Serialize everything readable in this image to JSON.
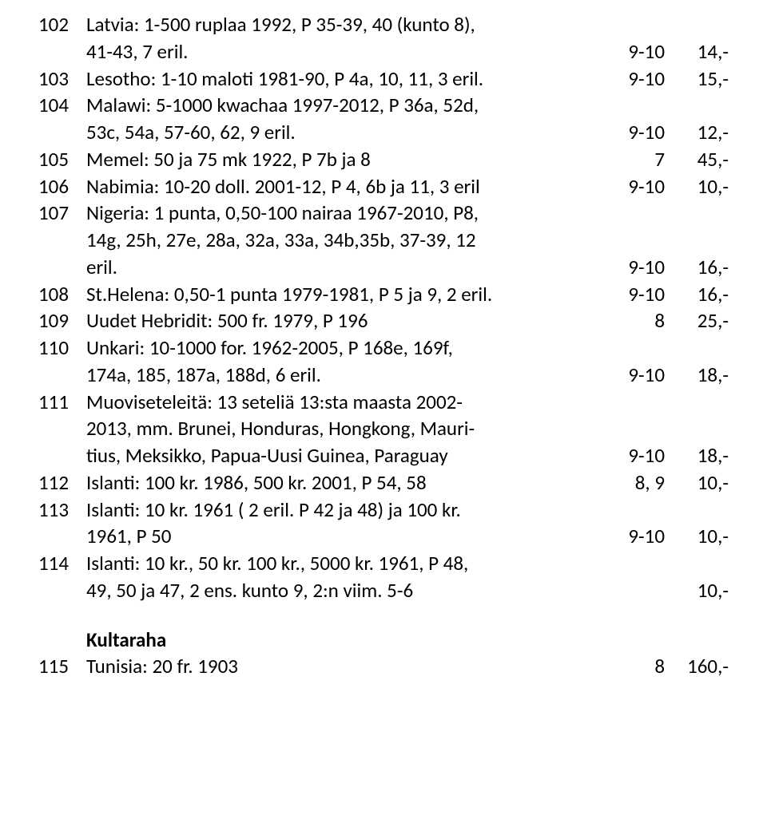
{
  "rows": [
    {
      "num": "102",
      "lines": [
        "Latvia: 1-500 ruplaa 1992, P 35-39, 40 (kunto 8),",
        "41-43, 7 eril."
      ],
      "c3": "9-10",
      "c4": "14,-"
    },
    {
      "num": "103",
      "lines": [
        "Lesotho: 1-10 maloti 1981-90, P 4a, 10, 11, 3 eril."
      ],
      "c3": "9-10",
      "c4": "15,-"
    },
    {
      "num": "104",
      "lines": [
        "Malawi: 5-1000 kwachaa 1997-2012, P 36a, 52d,",
        "53c, 54a, 57-60, 62, 9 eril."
      ],
      "c3": "9-10",
      "c4": "12,-"
    },
    {
      "num": "105",
      "lines": [
        "Memel: 50 ja 75 mk 1922, P 7b ja 8"
      ],
      "c3": "7",
      "c4": "45,-"
    },
    {
      "num": "106",
      "lines": [
        "Nabimia: 10-20 doll. 2001-12, P 4, 6b ja 11, 3 eril"
      ],
      "c3": "9-10",
      "c4": "10,-"
    },
    {
      "num": "107",
      "lines": [
        "Nigeria: 1 punta, 0,50-100 nairaa 1967-2010, P8,",
        "14g, 25h, 27e, 28a, 32a, 33a, 34b,35b, 37-39, 12",
        "eril."
      ],
      "c3": "9-10",
      "c4": "16,-"
    },
    {
      "num": "108",
      "lines": [
        "St.Helena: 0,50-1 punta 1979-1981, P 5 ja 9, 2 eril."
      ],
      "c3": "9-10",
      "c4": "16,-"
    },
    {
      "num": "109",
      "lines": [
        "Uudet Hebridit: 500 fr. 1979, P 196"
      ],
      "c3": "8",
      "c4": "25,-"
    },
    {
      "num": "110",
      "lines": [
        "Unkari: 10-1000 for. 1962-2005, P 168e, 169f,",
        "174a, 185, 187a, 188d,  6 eril."
      ],
      "c3": "9-10",
      "c4": "18,-"
    },
    {
      "num": "111",
      "lines": [
        "Muoviseteleitä: 13 seteliä 13:sta maasta 2002-",
        "2013, mm. Brunei, Honduras, Hongkong, Mauri-",
        "tius, Meksikko, Papua-Uusi Guinea, Paraguay"
      ],
      "c3": "9-10",
      "c4": "18,-"
    },
    {
      "num": "112",
      "lines": [
        "Islanti: 100 kr. 1986, 500 kr. 2001, P 54, 58"
      ],
      "c3": "8, 9",
      "c4": "10,-"
    },
    {
      "num": "113",
      "lines": [
        "Islanti: 10 kr.  1961 ( 2 eril. P 42 ja 48) ja 100 kr.",
        "1961, P 50"
      ],
      "c3": "9-10",
      "c4": "10,-"
    },
    {
      "num": "114",
      "lines": [
        "Islanti:  10 kr., 50 kr. 100 kr., 5000 kr. 1961, P  48,",
        "49, 50 ja 47, 2 ens. kunto 9, 2:n viim. 5-6"
      ],
      "c3": "",
      "c4": "10,-"
    }
  ],
  "section": {
    "heading": "Kultaraha",
    "row": {
      "num": "115",
      "lines": [
        "Tunisia: 20 fr. 1903"
      ],
      "c3": "8",
      "c4": "160,-"
    }
  }
}
